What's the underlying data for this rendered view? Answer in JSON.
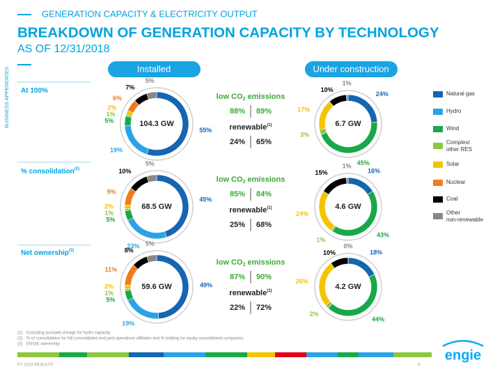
{
  "header": {
    "section": "GENERATION CAPACITY & ELECTRICITY OUTPUT",
    "title": "BREAKDOWN OF GENERATION CAPACITY BY TECHNOLOGY",
    "subtitle": "AS OF 12/31/2018",
    "side": "BUSINESS APPENDICES"
  },
  "columns": [
    "Installed",
    "Under construction"
  ],
  "rows": [
    {
      "label": "At 100%",
      "sup": null,
      "co2": {
        "text": "low CO",
        "sub": "2",
        "tail": " emissions"
      },
      "co2_values": [
        "88%",
        "89%"
      ],
      "renewable": {
        "text": "renewable",
        "sup": "(1)"
      },
      "renewable_values": [
        "24%",
        "65%"
      ]
    },
    {
      "label": "% consolidation",
      "sup": "(2)",
      "co2": {
        "text": "low CO",
        "sub": "2",
        "tail": " emissions"
      },
      "co2_values": [
        "85%",
        "84%"
      ],
      "renewable": {
        "text": "renewable",
        "sup": "(1)"
      },
      "renewable_values": [
        "25%",
        "68%"
      ]
    },
    {
      "label": "Net ownership",
      "sup": "(3)",
      "co2": {
        "text": "low CO",
        "sub": "2",
        "tail": " emissions"
      },
      "co2_values": [
        "87%",
        "90%"
      ],
      "renewable": {
        "text": "renewable",
        "sup": "(1)"
      },
      "renewable_values": [
        "22%",
        "72%"
      ]
    }
  ],
  "legend": [
    {
      "name": "Natural gas",
      "color": "#1565b0"
    },
    {
      "name": "Hydro",
      "color": "#2aa3e6"
    },
    {
      "name": "Wind",
      "color": "#19a849"
    },
    {
      "name": [
        "Complex/",
        "other RES"
      ],
      "color": "#8dc63f"
    },
    {
      "name": "Solar",
      "color": "#f5c400"
    },
    {
      "name": "Nuclear",
      "color": "#ef7d1a"
    },
    {
      "name": "Coal",
      "color": "#000000"
    },
    {
      "name": [
        "Other",
        "non-renewable"
      ],
      "color": "#888888"
    }
  ],
  "chart_data": [
    {
      "type": "pie",
      "center_label": "104.3 GW",
      "values": [
        55,
        19,
        5,
        1,
        2,
        6,
        7,
        5
      ],
      "value_labels": [
        "55%",
        "19%",
        "5%",
        "1%",
        "2%",
        "6%",
        "7%",
        "5%"
      ]
    },
    {
      "type": "pie",
      "center_label": "6.7 GW",
      "values": [
        24,
        null,
        45,
        3,
        17,
        null,
        10,
        1
      ],
      "value_labels": [
        "24%",
        null,
        "45%",
        "3%",
        "17%",
        null,
        "10%",
        "1%"
      ]
    },
    {
      "type": "pie",
      "center_label": "68.5 GW",
      "values": [
        45,
        23,
        5,
        1,
        2,
        9,
        10,
        5
      ],
      "value_labels": [
        "45%",
        "23%",
        "5%",
        "1%",
        "2%",
        "9%",
        "10%",
        "5%"
      ]
    },
    {
      "type": "pie",
      "center_label": "4.6 GW",
      "values": [
        16,
        null,
        43,
        1,
        24,
        null,
        15,
        1
      ],
      "value_labels": [
        "16%",
        null,
        "43%",
        "1%",
        "24%",
        null,
        "15%",
        "1%"
      ]
    },
    {
      "type": "pie",
      "center_label": "59.6 GW",
      "values": [
        49,
        19,
        5,
        1,
        2,
        11,
        8,
        5
      ],
      "value_labels": [
        "49%",
        "19%",
        "5%",
        "1%",
        "2%",
        "11%",
        "8%",
        "5%"
      ]
    },
    {
      "type": "pie",
      "center_label": "4.2 GW",
      "values": [
        18,
        null,
        44,
        2,
        26,
        null,
        10,
        0
      ],
      "value_labels": [
        "18%",
        null,
        "44%",
        "2%",
        "26%",
        null,
        "10%",
        "0%"
      ]
    }
  ],
  "footnotes": [
    {
      "marker": "(1)",
      "text": "Excluding pumped storage for hydro capacity"
    },
    {
      "marker": "(2)",
      "text": "% of consolidation for full consolidated and joint operations affiliates and % holding for equity consolidated companies"
    },
    {
      "marker": "(3)",
      "text": "ENGIE ownership"
    }
  ],
  "footer": {
    "left": "FY 2018 RESULTS",
    "page": "6",
    "logo": "engie"
  }
}
